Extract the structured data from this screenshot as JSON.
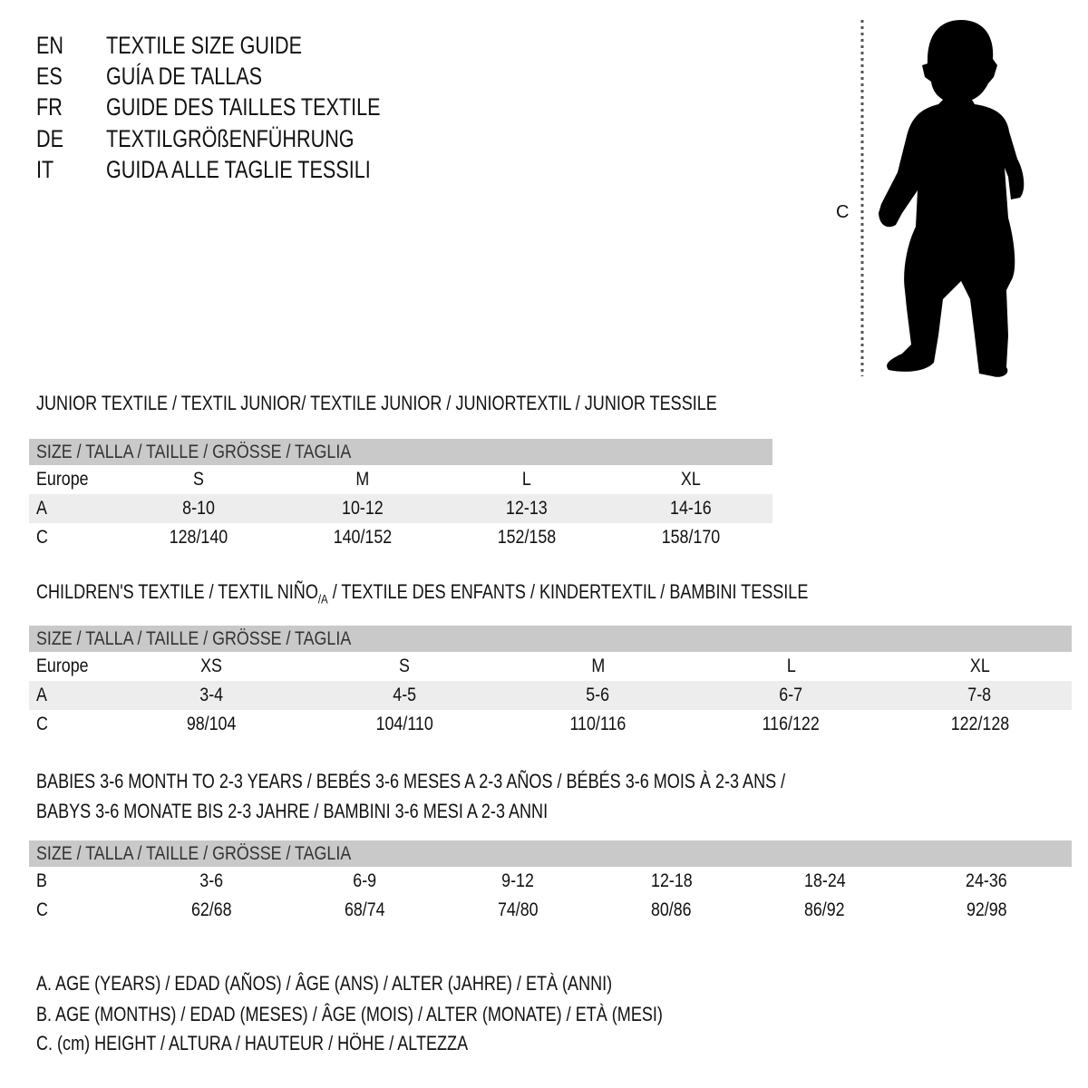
{
  "languages": [
    {
      "code": "EN",
      "title": "TEXTILE SIZE GUIDE"
    },
    {
      "code": "ES",
      "title": "GUÍA DE TALLAS"
    },
    {
      "code": "FR",
      "title": "GUIDE DES TAILLES TEXTILE"
    },
    {
      "code": "DE",
      "title": "TEXTILGRÖßENFÜHRUNG"
    },
    {
      "code": "IT",
      "title": "GUIDA ALLE TAGLIE TESSILI"
    }
  ],
  "figure": {
    "height_label": "C",
    "icon": "child-silhouette-icon"
  },
  "colors": {
    "header_row": "#c9c9c9",
    "shaded_row": "#ededed"
  },
  "junior": {
    "heading": "JUNIOR TEXTILE / TEXTIL JUNIOR/ TEXTILE JUNIOR / JUNIORTEXTIL / JUNIOR TESSILE",
    "size_header": "SIZE / TALLA / TAILLE / GRÖSSE / TAGLIA",
    "rows": [
      {
        "label": "Europe",
        "values": [
          "S",
          "M",
          "L",
          "XL"
        ]
      },
      {
        "label": "A",
        "values": [
          "8-10",
          "10-12",
          "12-13",
          "14-16"
        ]
      },
      {
        "label": "C",
        "values": [
          "128/140",
          "140/152",
          "152/158",
          "158/170"
        ]
      }
    ]
  },
  "children": {
    "heading_before": "CHILDREN'S TEXTILE / TEXTIL NIÑO",
    "heading_sub": "/A",
    "heading_after": " / TEXTILE DES ENFANTS / KINDERTEXTIL / BAMBINI TESSILE",
    "size_header": "SIZE / TALLA / TAILLE / GRÖSSE / TAGLIA",
    "rows": [
      {
        "label": "Europe",
        "values": [
          "XS",
          "S",
          "M",
          "L",
          "XL"
        ]
      },
      {
        "label": "A",
        "values": [
          "3-4",
          "4-5",
          "5-6",
          "6-7",
          "7-8"
        ]
      },
      {
        "label": "C",
        "values": [
          "98/104",
          "104/110",
          "110/116",
          "116/122",
          "122/128"
        ]
      }
    ]
  },
  "babies": {
    "heading_line1": "BABIES 3-6 MONTH TO 2-3 YEARS / BEBÉS 3-6 MESES A 2-3 AÑOS / BÉBÉS 3-6 MOIS À 2-3 ANS /",
    "heading_line2": "BABYS 3-6 MONATE BIS 2-3 JAHRE / BAMBINI 3-6 MESI A 2-3 ANNI",
    "size_header": "SIZE / TALLA / TAILLE / GRÖSSE / TAGLIA",
    "rows": [
      {
        "label": "B",
        "values": [
          "3-6",
          "6-9",
          "9-12",
          "12-18",
          "18-24",
          "24-36"
        ]
      },
      {
        "label": "C",
        "values": [
          "62/68",
          "68/74",
          "74/80",
          "80/86",
          "86/92",
          "92/98"
        ]
      }
    ]
  },
  "legend": [
    "A. AGE (YEARS) / EDAD (AÑOS) / ÂGE (ANS) / ALTER (JAHRE) / ETÀ (ANNI)",
    "B. AGE (MONTHS) / EDAD (MESES) / ÂGE (MOIS) / ALTER (MONATE) / ETÀ (MESI)",
    "C. (cm) HEIGHT / ALTURA / HAUTEUR / HÖHE / ALTEZZA"
  ]
}
